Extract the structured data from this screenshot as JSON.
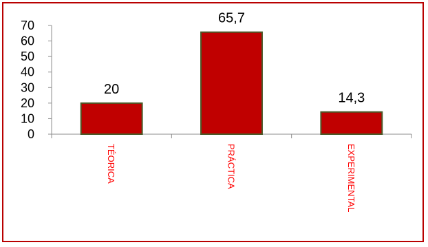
{
  "chart_data": {
    "type": "bar",
    "categories": [
      "TÉORICA",
      "PRÁCTICA",
      "EXPERIMENTAL"
    ],
    "values": [
      20,
      65.7,
      14.3
    ],
    "data_labels": [
      "20",
      "65,7",
      "14,3"
    ],
    "ylim": [
      0,
      70
    ],
    "yticks": [
      0,
      10,
      20,
      30,
      40,
      50,
      60,
      70
    ],
    "grid": false,
    "legend": "none",
    "colors": {
      "bar_fill": "#c00000",
      "bar_border": "#4a5a28",
      "category_text": "#ff0000",
      "frame_border": "#b90000"
    }
  }
}
